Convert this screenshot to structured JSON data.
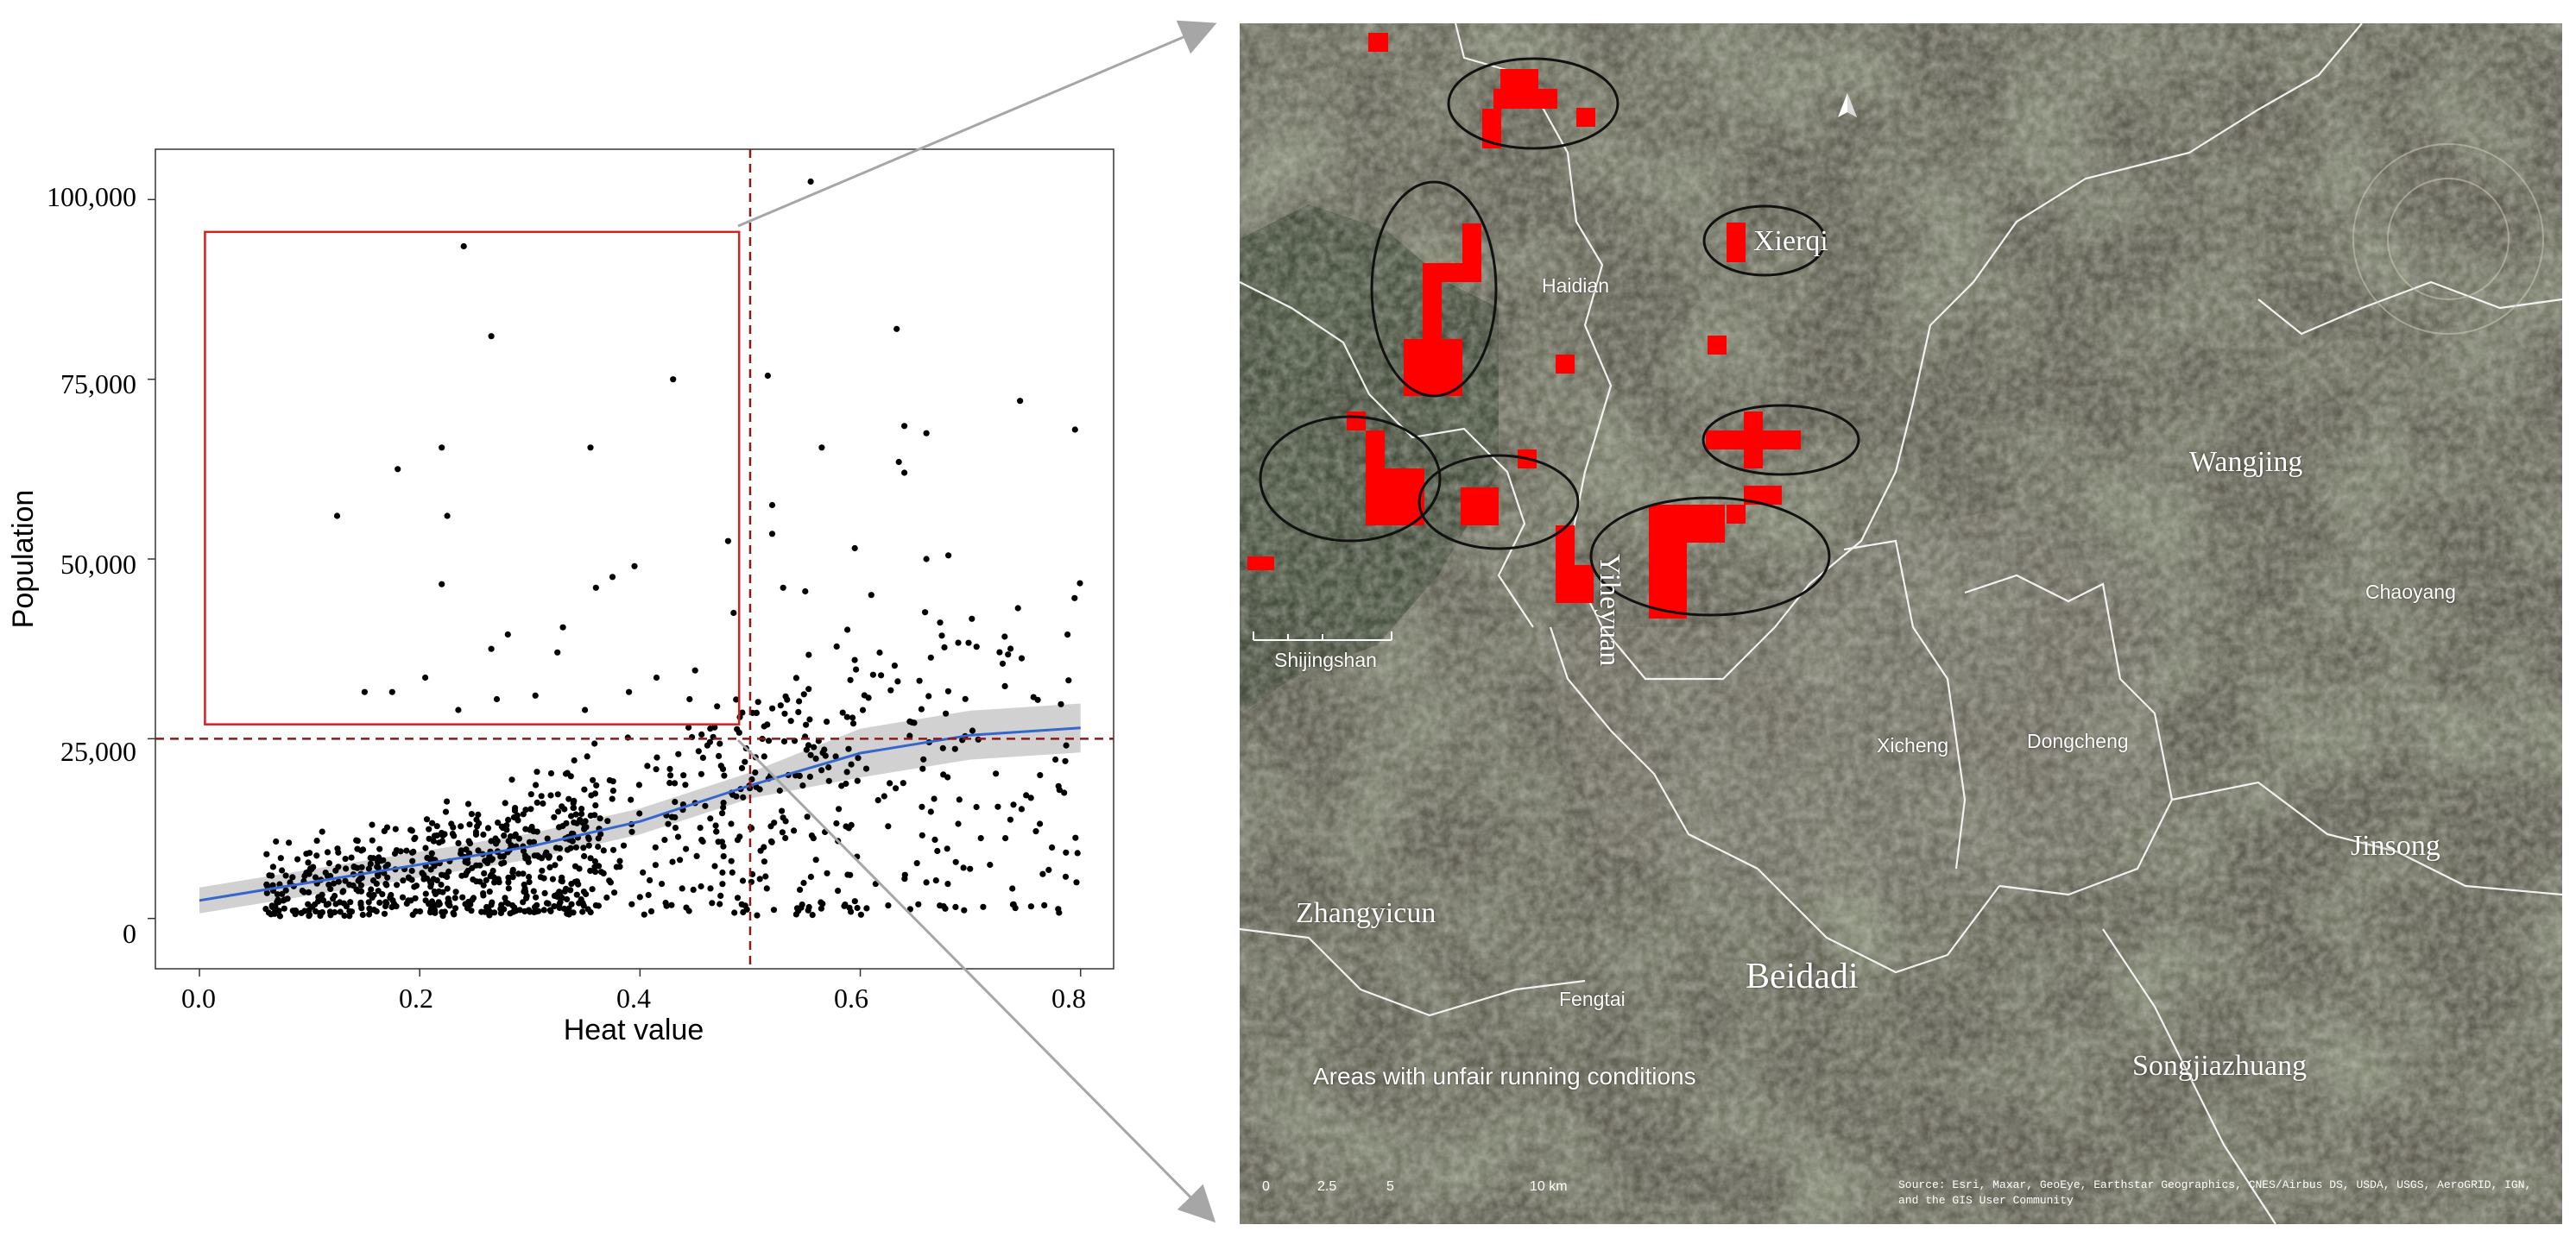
{
  "chart_data": {
    "type": "scatter",
    "xlabel": "Heat value",
    "ylabel": "Population",
    "xlim": [
      -0.04,
      0.83
    ],
    "ylim": [
      -7000,
      107000
    ],
    "x_ticks": [
      0.0,
      0.2,
      0.4,
      0.6,
      0.8
    ],
    "x_tick_labels": [
      "0.0",
      "0.2",
      "0.4",
      "0.6",
      "0.8"
    ],
    "y_ticks": [
      0,
      25000,
      50000,
      75000,
      100000
    ],
    "y_tick_labels": [
      "0",
      "25,000",
      "50,000",
      "75,000",
      "100,000"
    ],
    "grid": false,
    "threshold_x": 0.5,
    "threshold_y": 25000,
    "highlight_box": {
      "x": [
        0.005,
        0.49
      ],
      "y": [
        27000,
        95500
      ]
    },
    "trend": {
      "x": [
        0.0,
        0.1,
        0.2,
        0.3,
        0.4,
        0.5,
        0.6,
        0.7,
        0.8
      ],
      "y": [
        2500,
        5000,
        7500,
        10000,
        13500,
        18500,
        23000,
        25500,
        26500
      ]
    },
    "highlighted_points": [
      {
        "x": 0.24,
        "y": 93500
      },
      {
        "x": 0.265,
        "y": 81000
      },
      {
        "x": 0.43,
        "y": 75000
      },
      {
        "x": 0.22,
        "y": 65500
      },
      {
        "x": 0.355,
        "y": 65500
      },
      {
        "x": 0.18,
        "y": 62500
      },
      {
        "x": 0.125,
        "y": 56000
      },
      {
        "x": 0.225,
        "y": 56000
      },
      {
        "x": 0.48,
        "y": 52500
      },
      {
        "x": 0.375,
        "y": 47500
      },
      {
        "x": 0.395,
        "y": 49000
      },
      {
        "x": 0.22,
        "y": 46500
      },
      {
        "x": 0.36,
        "y": 46000
      },
      {
        "x": 0.28,
        "y": 39500
      },
      {
        "x": 0.265,
        "y": 37500
      },
      {
        "x": 0.325,
        "y": 37000
      },
      {
        "x": 0.33,
        "y": 40500
      },
      {
        "x": 0.415,
        "y": 33500
      },
      {
        "x": 0.45,
        "y": 34500
      },
      {
        "x": 0.15,
        "y": 31500
      },
      {
        "x": 0.175,
        "y": 31500
      },
      {
        "x": 0.27,
        "y": 30500
      },
      {
        "x": 0.35,
        "y": 29000
      },
      {
        "x": 0.39,
        "y": 31500
      },
      {
        "x": 0.205,
        "y": 33500
      },
      {
        "x": 0.47,
        "y": 29500
      },
      {
        "x": 0.235,
        "y": 29000
      },
      {
        "x": 0.305,
        "y": 31000
      },
      {
        "x": 0.445,
        "y": 30500
      },
      {
        "x": 0.485,
        "y": 42500
      }
    ],
    "outlier_points": [
      {
        "x": 0.555,
        "y": 102500
      },
      {
        "x": 0.633,
        "y": 82000
      },
      {
        "x": 0.516,
        "y": 75500
      },
      {
        "x": 0.745,
        "y": 72000
      },
      {
        "x": 0.795,
        "y": 68000
      },
      {
        "x": 0.64,
        "y": 68500
      },
      {
        "x": 0.66,
        "y": 67500
      },
      {
        "x": 0.565,
        "y": 65500
      },
      {
        "x": 0.635,
        "y": 63500
      },
      {
        "x": 0.64,
        "y": 62000
      },
      {
        "x": 0.52,
        "y": 57500
      },
      {
        "x": 0.595,
        "y": 51500
      },
      {
        "x": 0.66,
        "y": 50000
      },
      {
        "x": 0.68,
        "y": 50500
      },
      {
        "x": 0.52,
        "y": 53500
      },
      {
        "x": 0.53,
        "y": 46000
      },
      {
        "x": 0.55,
        "y": 45500
      },
      {
        "x": 0.61,
        "y": 45000
      }
    ],
    "series": [
      {
        "type": "points",
        "count": 1000
      }
    ]
  },
  "map": {
    "area_labels": [
      {
        "text": "Xierqi"
      },
      {
        "text": "Wangjing"
      },
      {
        "text": "Yiheyuan"
      },
      {
        "text": "Jinsong"
      },
      {
        "text": "Zhangyicun"
      },
      {
        "text": "Beidadi"
      },
      {
        "text": "Songjiazhuang"
      }
    ],
    "district_labels": [
      {
        "text": "Haidian"
      },
      {
        "text": "Chaoyang"
      },
      {
        "text": "Shijingshan"
      },
      {
        "text": "Xicheng"
      },
      {
        "text": "Dongcheng"
      },
      {
        "text": "Fengtai"
      }
    ],
    "legend_label": "Areas with unfair running conditions",
    "scale_labels": [
      "0",
      "2.5",
      "5",
      "10 km"
    ],
    "source_text": "Source: Esri, Maxar, GeoEye, Earthstar Geographics, CNES/Airbus DS, USDA, USGS, AeroGRID, IGN, and the GIS User Community",
    "colors": {
      "unfair_area": "#ff0000",
      "basemap_dark": "#3f4639",
      "basemap_urban": "#6c6a5c",
      "boundary": "#ffffff",
      "ellipse": "#111111"
    },
    "north_arrow_icon": "north-arrow-icon"
  },
  "colors": {
    "points": "#000000",
    "trend_line": "#3466cc",
    "confidence_band": "#bdbdbd",
    "threshold_lines": "#8b1a1a",
    "highlight_box": "#d42020",
    "connector": "#a6a6a6"
  }
}
